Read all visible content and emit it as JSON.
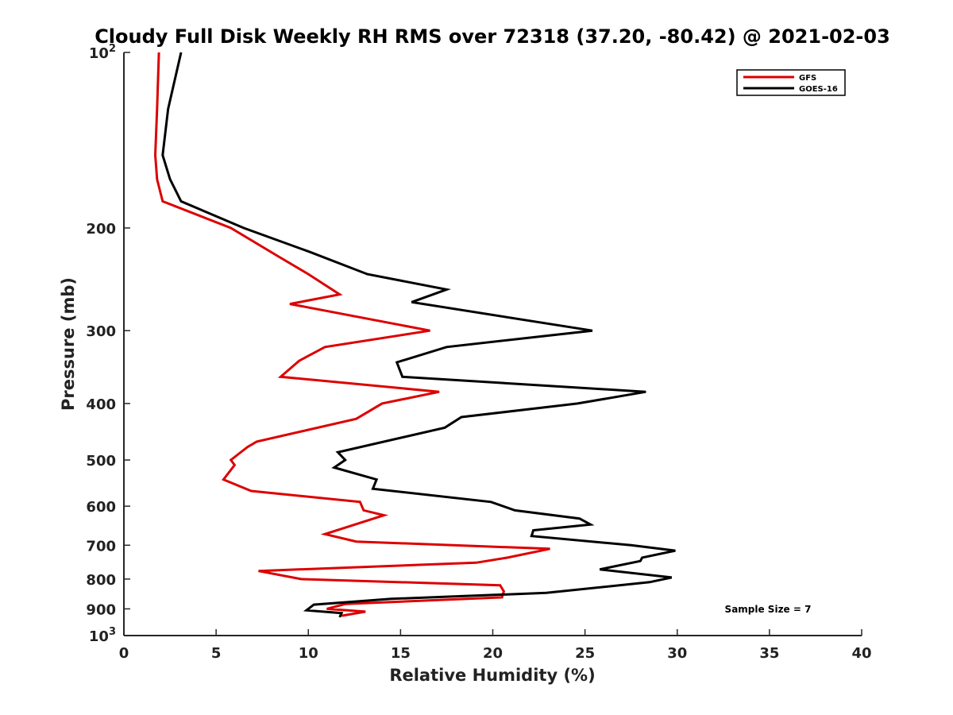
{
  "chart_data": {
    "type": "line",
    "title": "Cloudy Full Disk Weekly RH RMS over 72318 (37.20, -80.42) @ 2021-02-03",
    "xlabel": "Relative Humidity (%)",
    "ylabel": "Pressure (mb)",
    "xlim": [
      0,
      40
    ],
    "ylim": [
      1000,
      100
    ],
    "y_scale": "log",
    "x_ticks": [
      0,
      5,
      10,
      15,
      20,
      25,
      30,
      35,
      40
    ],
    "x_tick_labels": [
      "0",
      "5",
      "10",
      "15",
      "20",
      "25",
      "30",
      "35",
      "40"
    ],
    "y_ticks": [
      100,
      200,
      300,
      400,
      500,
      600,
      700,
      800,
      900,
      1000
    ],
    "y_tick_labels": [
      {
        "base": "10",
        "exp": "2"
      },
      {
        "base": "200",
        "exp": ""
      },
      {
        "base": "300",
        "exp": ""
      },
      {
        "base": "400",
        "exp": ""
      },
      {
        "base": "500",
        "exp": ""
      },
      {
        "base": "600",
        "exp": ""
      },
      {
        "base": "700",
        "exp": ""
      },
      {
        "base": "800",
        "exp": ""
      },
      {
        "base": "900",
        "exp": ""
      },
      {
        "base": "10",
        "exp": "3"
      }
    ],
    "legend": {
      "placement": "top-right",
      "entries": [
        {
          "name": "GFS",
          "color": "#dd0000"
        },
        {
          "name": "GOES-16",
          "color": "#000000"
        }
      ]
    },
    "annotation": "Sample Size = 7",
    "series": [
      {
        "name": "GFS",
        "color": "#dd0000",
        "points": [
          [
            1.9,
            100
          ],
          [
            1.8,
            125
          ],
          [
            1.7,
            150
          ],
          [
            1.8,
            165
          ],
          [
            2.1,
            180
          ],
          [
            5.8,
            200
          ],
          [
            8.5,
            225
          ],
          [
            10.0,
            240
          ],
          [
            11.7,
            260
          ],
          [
            9.0,
            270
          ],
          [
            16.6,
            300
          ],
          [
            10.9,
            320
          ],
          [
            9.5,
            338
          ],
          [
            8.5,
            360
          ],
          [
            17.1,
            382
          ],
          [
            14.0,
            400
          ],
          [
            12.6,
            425
          ],
          [
            7.2,
            465
          ],
          [
            6.7,
            475
          ],
          [
            5.8,
            500
          ],
          [
            6.0,
            510
          ],
          [
            5.4,
            540
          ],
          [
            6.9,
            565
          ],
          [
            12.8,
            590
          ],
          [
            13.0,
            610
          ],
          [
            14.1,
            622
          ],
          [
            10.9,
            670
          ],
          [
            12.6,
            690
          ],
          [
            23.1,
            710
          ],
          [
            20.8,
            735
          ],
          [
            19.1,
            750
          ],
          [
            7.3,
            775
          ],
          [
            9.6,
            800
          ],
          [
            20.4,
            820
          ],
          [
            20.6,
            840
          ],
          [
            20.5,
            860
          ],
          [
            12.0,
            883
          ],
          [
            11.0,
            900
          ],
          [
            13.1,
            910
          ],
          [
            11.8,
            925
          ]
        ]
      },
      {
        "name": "GOES-16",
        "color": "#000000",
        "points": [
          [
            3.1,
            100
          ],
          [
            2.4,
            125
          ],
          [
            2.1,
            150
          ],
          [
            2.5,
            165
          ],
          [
            3.1,
            180
          ],
          [
            6.5,
            200
          ],
          [
            10.1,
            220
          ],
          [
            13.2,
            240
          ],
          [
            17.5,
            255
          ],
          [
            15.6,
            268
          ],
          [
            25.4,
            300
          ],
          [
            17.5,
            320
          ],
          [
            14.8,
            340
          ],
          [
            15.1,
            360
          ],
          [
            28.3,
            382
          ],
          [
            24.6,
            400
          ],
          [
            18.3,
            422
          ],
          [
            17.4,
            440
          ],
          [
            11.6,
            485
          ],
          [
            12.0,
            500
          ],
          [
            11.4,
            515
          ],
          [
            13.7,
            540
          ],
          [
            13.5,
            560
          ],
          [
            19.9,
            590
          ],
          [
            21.2,
            610
          ],
          [
            24.7,
            630
          ],
          [
            25.3,
            645
          ],
          [
            22.2,
            660
          ],
          [
            22.1,
            675
          ],
          [
            27.5,
            700
          ],
          [
            29.9,
            715
          ],
          [
            28.1,
            735
          ],
          [
            28.0,
            745
          ],
          [
            25.8,
            770
          ],
          [
            29.7,
            795
          ],
          [
            28.5,
            810
          ],
          [
            22.9,
            845
          ],
          [
            14.5,
            865
          ],
          [
            10.3,
            885
          ],
          [
            9.9,
            905
          ],
          [
            11.8,
            915
          ],
          [
            11.7,
            930
          ]
        ]
      }
    ]
  }
}
